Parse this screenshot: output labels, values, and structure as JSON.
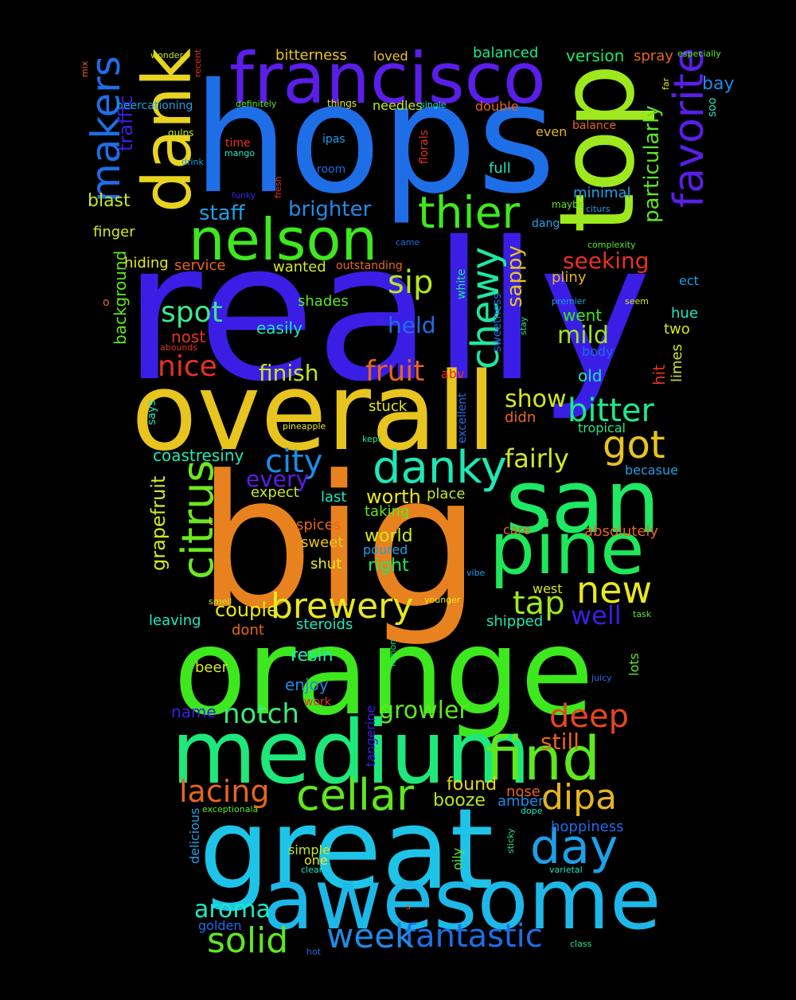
{
  "background_color": "#000000",
  "words": [
    {
      "text": "really",
      "color": "#3a1ee6"
    },
    {
      "text": "big",
      "color": "#e8821e"
    },
    {
      "text": "hops",
      "color": "#1e6ee8"
    },
    {
      "text": "orange",
      "color": "#3ee81e"
    },
    {
      "text": "overall",
      "color": "#e8c41e"
    },
    {
      "text": "great",
      "color": "#1ec4e8"
    },
    {
      "text": "top",
      "color": "#9ee81e"
    },
    {
      "text": "medium",
      "color": "#1ee87a"
    },
    {
      "text": "san",
      "color": "#1ee864"
    },
    {
      "text": "awesome",
      "color": "#1eb8e8"
    },
    {
      "text": "pine",
      "color": "#1ee85a"
    },
    {
      "text": "francisco",
      "color": "#5a1ee8"
    },
    {
      "text": "dank",
      "color": "#e8d41e"
    },
    {
      "text": "nelson",
      "color": "#3ee81e"
    },
    {
      "text": "find",
      "color": "#5ee81e"
    },
    {
      "text": "citrus",
      "color": "#6ee81e"
    },
    {
      "text": "danky",
      "color": "#1ee8b4"
    },
    {
      "text": "favorite",
      "color": "#5a1ee8"
    },
    {
      "text": "thier",
      "color": "#3ee81e"
    },
    {
      "text": "cellar",
      "color": "#5ee81e"
    },
    {
      "text": "makers",
      "color": "#1e6ee8"
    },
    {
      "text": "chewy",
      "color": "#1ee8a0"
    },
    {
      "text": "day",
      "color": "#1ea0e8"
    },
    {
      "text": "new",
      "color": "#e8e81e"
    },
    {
      "text": "brewery",
      "color": "#e8e81e"
    },
    {
      "text": "fantastic",
      "color": "#1e6ee8"
    },
    {
      "text": "solid",
      "color": "#5ee81e"
    },
    {
      "text": "week",
      "color": "#1e8ce8"
    },
    {
      "text": "bitter",
      "color": "#1ee88c"
    },
    {
      "text": "got",
      "color": "#e8c41e"
    },
    {
      "text": "dipa",
      "color": "#e8b41e"
    },
    {
      "text": "deep",
      "color": "#e8461e"
    },
    {
      "text": "lacing",
      "color": "#e8641e"
    },
    {
      "text": "sip",
      "color": "#b4e81e"
    },
    {
      "text": "nice",
      "color": "#e8321e"
    },
    {
      "text": "city",
      "color": "#1e8ce8"
    },
    {
      "text": "tap",
      "color": "#9ee81e"
    },
    {
      "text": "fruit",
      "color": "#e8641e"
    },
    {
      "text": "notch",
      "color": "#3ee87a"
    },
    {
      "text": "spot",
      "color": "#3ee88c"
    },
    {
      "text": "growler",
      "color": "#5ee81e"
    },
    {
      "text": "fairly",
      "color": "#d4e81e"
    },
    {
      "text": "aroma",
      "color": "#1ee8c4"
    },
    {
      "text": "well",
      "color": "#3a1ee8"
    },
    {
      "text": "every",
      "color": "#5a1ee8"
    },
    {
      "text": "couple",
      "color": "#e8e81e"
    },
    {
      "text": "brighter",
      "color": "#1e8ce8"
    },
    {
      "text": "staff",
      "color": "#1ea0e8"
    },
    {
      "text": "mild",
      "color": "#9ee81e"
    },
    {
      "text": "finish",
      "color": "#c4e81e"
    },
    {
      "text": "held",
      "color": "#1e6ee8"
    },
    {
      "text": "show",
      "color": "#d4e81e"
    },
    {
      "text": "seeking",
      "color": "#e8321e"
    },
    {
      "text": "particularly",
      "color": "#5ee81e"
    },
    {
      "text": "sappy",
      "color": "#e8c41e"
    },
    {
      "text": "grapefruit",
      "color": "#d4e81e"
    },
    {
      "text": "still",
      "color": "#e8641e"
    },
    {
      "text": "worth",
      "color": "#e8e81e"
    },
    {
      "text": "coastresiny",
      "color": "#1ee8b4"
    },
    {
      "text": "booze",
      "color": "#b4e81e"
    },
    {
      "text": "resin",
      "color": "#1ee8c4"
    },
    {
      "text": "right",
      "color": "#1ee864"
    },
    {
      "text": "blast",
      "color": "#c4e81e"
    },
    {
      "text": "world",
      "color": "#d4e81e"
    },
    {
      "text": "traffic",
      "color": "#3a1ee8"
    },
    {
      "text": "found",
      "color": "#e8d41e"
    },
    {
      "text": "hit",
      "color": "#e8321e"
    },
    {
      "text": "enjoy",
      "color": "#1e8ce8"
    },
    {
      "text": "minimal",
      "color": "#1ea0e8"
    },
    {
      "text": "easily",
      "color": "#1ee8c4"
    },
    {
      "text": "full",
      "color": "#1ee8c4"
    },
    {
      "text": "balanced",
      "color": "#1ee88c"
    },
    {
      "text": "version",
      "color": "#1ee864"
    },
    {
      "text": "beer",
      "color": "#d4e81e"
    },
    {
      "text": "name",
      "color": "#3a1ee8"
    },
    {
      "text": "went",
      "color": "#3ee81e"
    },
    {
      "text": "old",
      "color": "#1ee8c4"
    },
    {
      "text": "bitterness",
      "color": "#e8c41e"
    },
    {
      "text": "expect",
      "color": "#c4e81e"
    },
    {
      "text": "shut",
      "color": "#e8e81e"
    },
    {
      "text": "sweet",
      "color": "#e8c41e"
    },
    {
      "text": "background",
      "color": "#5ee81e"
    },
    {
      "text": "finger",
      "color": "#d4e81e"
    },
    {
      "text": "spray",
      "color": "#e8641e"
    },
    {
      "text": "bay",
      "color": "#1e8ce8"
    },
    {
      "text": "dont",
      "color": "#e8641e"
    },
    {
      "text": "leaving",
      "color": "#1ee8c4"
    },
    {
      "text": "steroids",
      "color": "#1ee8c4"
    },
    {
      "text": "pliny",
      "color": "#e8b41e"
    },
    {
      "text": "nost",
      "color": "#e8321e"
    },
    {
      "text": "hue",
      "color": "#1ee8c4"
    },
    {
      "text": "limes",
      "color": "#d4e81e"
    },
    {
      "text": "hiding",
      "color": "#e8e81e"
    },
    {
      "text": "service",
      "color": "#e8641e"
    },
    {
      "text": "stuck",
      "color": "#e8e81e"
    },
    {
      "text": "wanted",
      "color": "#d4e81e"
    },
    {
      "text": "shades",
      "color": "#5ee81e"
    },
    {
      "text": "place",
      "color": "#c4e81e"
    },
    {
      "text": "last",
      "color": "#1ee8c4"
    },
    {
      "text": "taking",
      "color": "#5ee81e"
    },
    {
      "text": "spices",
      "color": "#e8641e"
    },
    {
      "text": "poured",
      "color": "#1ea0e8"
    },
    {
      "text": "shipped",
      "color": "#1ee8b4"
    },
    {
      "text": "absolutely",
      "color": "#e8641e"
    },
    {
      "text": "nose",
      "color": "#e8641e"
    },
    {
      "text": "amber",
      "color": "#1e8ce8"
    },
    {
      "text": "hoppiness",
      "color": "#1e6ee8"
    },
    {
      "text": "simple",
      "color": "#c4e81e"
    },
    {
      "text": "one",
      "color": "#e8e81e"
    },
    {
      "text": "oily",
      "color": "#5ee81e"
    },
    {
      "text": "golden",
      "color": "#1e6ee8"
    },
    {
      "text": "lots",
      "color": "#5ee81e"
    },
    {
      "text": "west",
      "color": "#d4e81e"
    },
    {
      "text": "two",
      "color": "#d4e81e"
    },
    {
      "text": "body",
      "color": "#1e6ee8"
    },
    {
      "text": "abv",
      "color": "#e8321e"
    },
    {
      "text": "didn",
      "color": "#e8641e"
    },
    {
      "text": "tropical",
      "color": "#1ee88c"
    },
    {
      "text": "becasue",
      "color": "#1ea0e8"
    },
    {
      "text": "care",
      "color": "#e8641e"
    },
    {
      "text": "even",
      "color": "#e8b41e"
    },
    {
      "text": "balance",
      "color": "#e8641e"
    },
    {
      "text": "soo",
      "color": "#1ee8c4"
    },
    {
      "text": "ect",
      "color": "#1ea0e8"
    },
    {
      "text": "beercationing",
      "color": "#1ea0e8"
    },
    {
      "text": "needles",
      "color": "#c4e81e"
    },
    {
      "text": "double",
      "color": "#e8641e"
    },
    {
      "text": "loved",
      "color": "#e8c41e"
    },
    {
      "text": "ipas",
      "color": "#1ea0e8"
    },
    {
      "text": "room",
      "color": "#1e6ee8"
    },
    {
      "text": "time",
      "color": "#e8321e"
    },
    {
      "text": "delicious",
      "color": "#1ea0e8"
    },
    {
      "text": "sweetness",
      "color": "#1e6ee8"
    },
    {
      "text": "excellent",
      "color": "#1e6ee8"
    },
    {
      "text": "white",
      "color": "#1ee88c"
    },
    {
      "text": "tangerine",
      "color": "#3a1ee8"
    },
    {
      "text": "work",
      "color": "#e8321e"
    },
    {
      "text": "t",
      "color": "#d4e81e"
    },
    {
      "text": "o",
      "color": "#e8641e"
    },
    {
      "text": "says",
      "color": "#1ee8c4"
    },
    {
      "text": "outstanding",
      "color": "#e8641e"
    },
    {
      "text": "florals",
      "color": "#e8321e"
    },
    {
      "text": "premier",
      "color": "#1ea0e8"
    },
    {
      "text": "seem",
      "color": "#d4e81e"
    },
    {
      "text": "citurs",
      "color": "#1ea0e8"
    },
    {
      "text": "maybe",
      "color": "#5ee81e"
    },
    {
      "text": "dang",
      "color": "#1ea0e8"
    },
    {
      "text": "complexity",
      "color": "#5ee81e"
    },
    {
      "text": "came",
      "color": "#1e6ee8"
    },
    {
      "text": "stay",
      "color": "#1ee88c"
    },
    {
      "text": "drink",
      "color": "#1ea0e8"
    },
    {
      "text": "gulps",
      "color": "#c4e81e"
    },
    {
      "text": "mango",
      "color": "#1ee8c4"
    },
    {
      "text": "fresh",
      "color": "#e8321e"
    },
    {
      "text": "funky",
      "color": "#3a1ee8"
    },
    {
      "text": "definitely",
      "color": "#5ee81e"
    },
    {
      "text": "things",
      "color": "#e8e81e"
    },
    {
      "text": "single",
      "color": "#1ee8c4"
    },
    {
      "text": "wonder",
      "color": "#c4e81e"
    },
    {
      "text": "recent",
      "color": "#e8321e"
    },
    {
      "text": "mix",
      "color": "#e8641e"
    },
    {
      "text": "especially",
      "color": "#5ee81e"
    },
    {
      "text": "far",
      "color": "#e8e81e"
    },
    {
      "text": "pineapple",
      "color": "#e8e81e"
    },
    {
      "text": "kept",
      "color": "#1ee88c"
    },
    {
      "text": "abounds",
      "color": "#e8321e"
    },
    {
      "text": "vibe",
      "color": "#1ea0e8"
    },
    {
      "text": "smell",
      "color": "#c4e81e"
    },
    {
      "text": "younger",
      "color": "#e8e81e"
    },
    {
      "text": "task",
      "color": "#5ee81e"
    },
    {
      "text": "lemon",
      "color": "#1ee864"
    },
    {
      "text": "juicy",
      "color": "#1e6ee8"
    },
    {
      "text": "exceptionala",
      "color": "#5ee81e"
    },
    {
      "text": "dope",
      "color": "#1ee8c4"
    },
    {
      "text": "sticky",
      "color": "#1ee88c"
    },
    {
      "text": "clear",
      "color": "#1ee8c4"
    },
    {
      "text": "varietal",
      "color": "#1ee8c4"
    },
    {
      "text": "s",
      "color": "#e8641e"
    },
    {
      "text": "hot",
      "color": "#1e6ee8"
    },
    {
      "text": "class",
      "color": "#1ee88c"
    }
  ]
}
